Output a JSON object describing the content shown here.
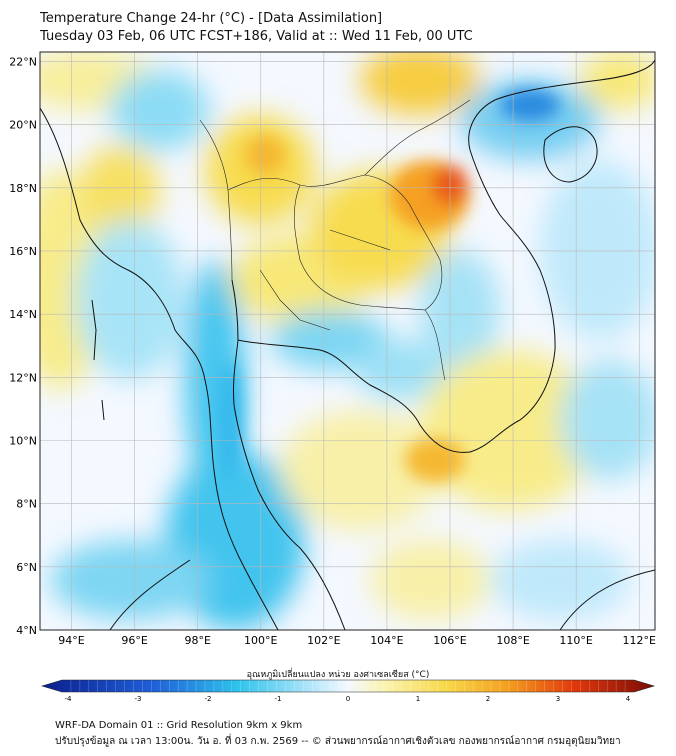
{
  "header": {
    "title_line1": "Temperature Change 24-hr (°C) - [Data Assimilation]",
    "title_line2": "Tuesday 03 Feb, 06 UTC FCST+186, Valid at :: Wed 11 Feb, 00 UTC"
  },
  "map": {
    "lat_labels": [
      "22°N",
      "20°N",
      "18°N",
      "16°N",
      "14°N",
      "12°N",
      "10°N",
      "8°N",
      "6°N",
      "4°N"
    ],
    "lon_labels": [
      "94°E",
      "96°E",
      "98°E",
      "100°E",
      "102°E",
      "104°E",
      "106°E",
      "108°E",
      "110°E",
      "112°E"
    ],
    "lat_range": [
      4,
      22.3
    ],
    "lon_range": [
      93,
      112.5
    ]
  },
  "colorbar": {
    "label": "อุณหภูมิเปลี่ยนแปลง หน่วย องศาเซลเซียส (°C)",
    "ticks": [
      "-4",
      "-3",
      "-2",
      "-1",
      "0",
      "1",
      "2",
      "3",
      "4"
    ],
    "range": [
      -4,
      4
    ]
  },
  "footer": {
    "line1": "WRF-DA Domain 01 :: Grid Resolution 9km x 9km",
    "line2": "ปรับปรุงข้อมูล ณ เวลา 13:00น. วัน อ. ที่ 03 ก.พ. 2569 -- © ส่วนพยากรณ์อากาศเชิงตัวเลข กองพยากรณ์อากาศ กรมอุตุนิยมวิทยา"
  },
  "colors": {
    "land_outline": "#111111",
    "grid": "#b8b8b8",
    "cold_max": "#0b1e8c",
    "cold": "#2ec3ec",
    "neutral": "#e8f4ff",
    "warm": "#f8e86a",
    "warm_max": "#7a0c06"
  }
}
